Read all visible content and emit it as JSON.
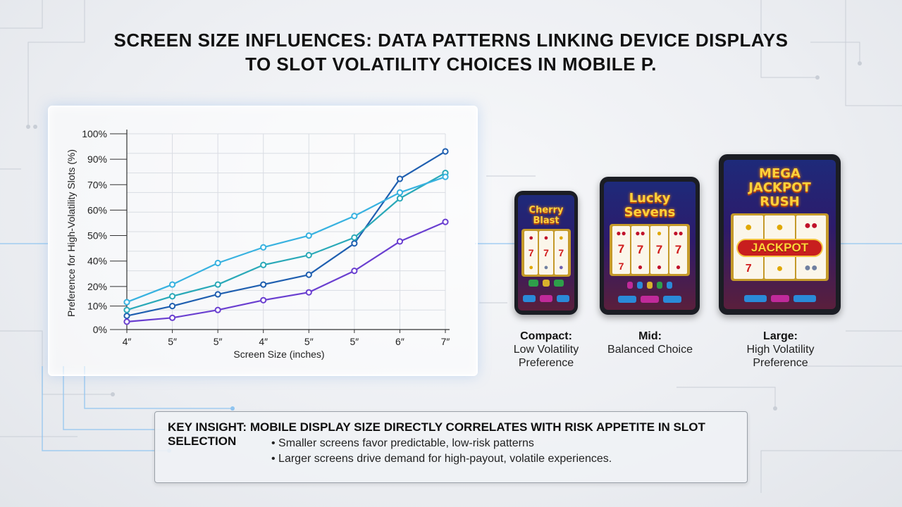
{
  "title": "SCREEN SIZE INFLUENCES: DATA PATTERNS LINKING DEVICE DISPLAYS TO SLOT VOLATILITY CHOICES IN MOBILE P.",
  "chart_data": {
    "type": "line",
    "xlabel": "Screen Size (inches)",
    "ylabel": "Preference for High-Volatility Slots (%)",
    "categories": [
      "4″",
      "5″",
      "5″",
      "4″",
      "5″",
      "5″",
      "6″",
      "7″"
    ],
    "y_tick_labels": [
      "0%",
      "10%",
      "20%",
      "40%",
      "50%",
      "60%",
      "70%",
      "90%",
      "100%"
    ],
    "ylim": [
      0,
      100
    ],
    "grid": true,
    "series": [
      {
        "color": "#1f5fb0",
        "values": [
          7,
          12,
          18,
          23,
          28,
          44,
          77,
          91
        ]
      },
      {
        "color": "#2aa9b8",
        "values": [
          10,
          17,
          23,
          33,
          38,
          47,
          67,
          80
        ]
      },
      {
        "color": "#38b2e0",
        "values": [
          14,
          23,
          34,
          42,
          48,
          58,
          70,
          78
        ]
      },
      {
        "color": "#6a3fd0",
        "values": [
          4,
          6,
          10,
          15,
          19,
          30,
          45,
          55
        ]
      }
    ]
  },
  "devices": [
    {
      "slot_title": "Cherry Blast",
      "caption_bold": "Compact:",
      "caption_text": "Low Volatility Preference"
    },
    {
      "slot_title": "Lucky Sevens",
      "caption_bold": "Mid:",
      "caption_text": "Balanced Choice"
    },
    {
      "slot_title": "MEGA JACKPOT RUSH",
      "jackpot_label": "JACKPOT",
      "caption_bold": "Large:",
      "caption_text": "High Volatility Preference"
    }
  ],
  "insight": {
    "title": "KEY INSIGHT: MOBILE DISPLAY SIZE DIRECTLY CORRELATES WITH RISK APPETITE IN SLOT SELECTION",
    "bullets": [
      "Smaller screens favor predictable, low-risk patterns",
      "Larger screens drive demand for high-payout, volatile experiences."
    ]
  }
}
